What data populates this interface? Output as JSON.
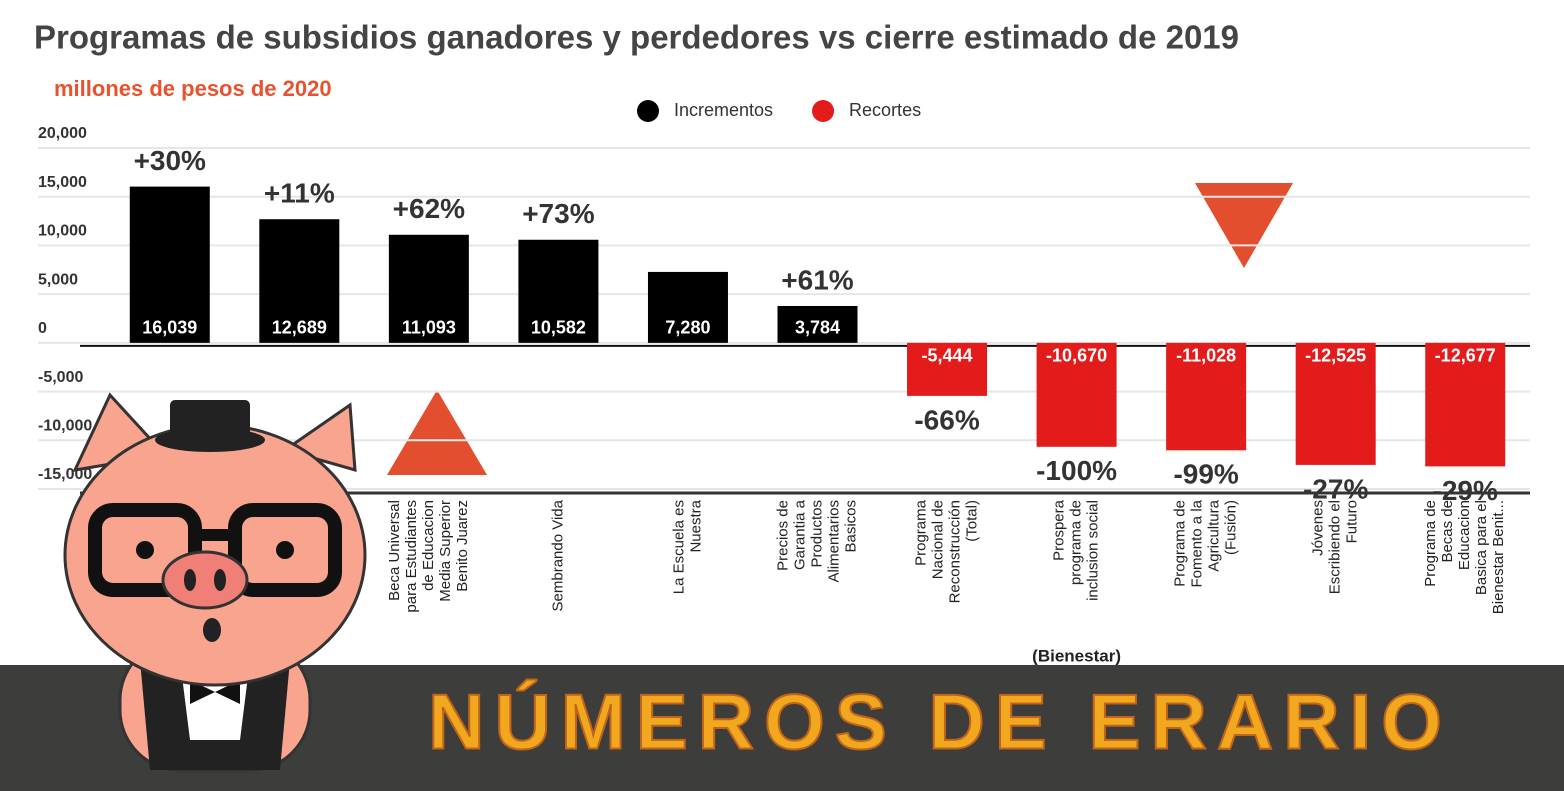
{
  "chart_data": {
    "type": "bar",
    "title": "Programas de subsidios ganadores y perdedores vs cierre estimado de 2019",
    "subtitle": "millones de pesos de 2020",
    "legend": [
      {
        "name": "Incrementos",
        "color": "#000000"
      },
      {
        "name": "Recortes",
        "color": "#e31b1b"
      }
    ],
    "categories": [
      null,
      null,
      [
        "Beca Universal",
        "para Estudiantes",
        "de Educacion",
        "Media Superior",
        "Benito Juarez"
      ],
      [
        "Sembrando Vida"
      ],
      [
        "La Escuela es",
        "Nuestra"
      ],
      [
        "Precios de",
        "Garantia a",
        "Productos",
        "Alimentarios",
        "Basicos"
      ],
      [
        "Programa",
        "Nacional de",
        "Reconstrucción",
        "(Total)"
      ],
      [
        "Prospera",
        "programa de",
        "inclusion social"
      ],
      [
        "Programa de",
        "Fomento a la",
        "Agricultura",
        "(Fusión)"
      ],
      [
        "Jóvenes",
        "Escribiendo el",
        "Futuro"
      ],
      [
        "Programa de",
        "Becas de",
        "Educacion",
        "Basica para el",
        "Bienestar Benit..."
      ]
    ],
    "category_note": "(Bienestar)",
    "values": [
      16039,
      12689,
      11093,
      10582,
      7280,
      3784,
      -5444,
      -10670,
      -11028,
      -12525,
      -12677
    ],
    "value_labels": [
      "16,039",
      "12,689",
      "11,093",
      "10,582",
      "7,280",
      "3,784",
      "-5,444",
      "-10,670",
      "-11,028",
      "-12,525",
      "-12,677"
    ],
    "change_labels": [
      "+30%",
      "+11%",
      "+62%",
      "+73%",
      null,
      "+61%",
      "-66%",
      "-100%",
      "-99%",
      "-27%",
      "-29%"
    ],
    "ylim": [
      -15000,
      20000
    ],
    "yticks": [
      {
        "value": 20000,
        "label": "20,000"
      },
      {
        "value": 15000,
        "label": "15,000"
      },
      {
        "value": 10000,
        "label": "10,000"
      },
      {
        "value": 5000,
        "label": "5,000"
      },
      0,
      {
        "value": -5000,
        "label": "-5,000"
      },
      {
        "value": -10000,
        "label": "-10,000"
      },
      {
        "value": -15000,
        "label": "-15,000"
      }
    ],
    "grid": true,
    "banner": "NÚMEROS DE ERARIO"
  }
}
